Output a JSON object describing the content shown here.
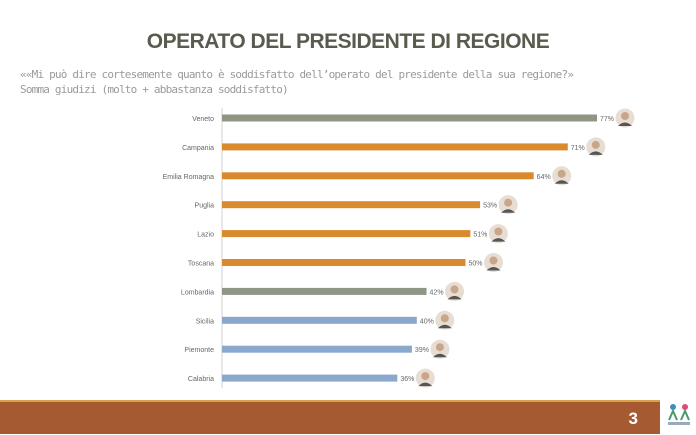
{
  "header": {
    "title": "OPERATO DEL PRESIDENTE DI REGIONE",
    "question": "««Mi può dire cortesemente quanto è soddisfatto dell’operato del presidente della sua regione?»",
    "subtitle": "Somma giudizi (molto + abbastanza soddisfatto)"
  },
  "chart_data": {
    "type": "bar",
    "orientation": "horizontal",
    "xlim": [
      0,
      100
    ],
    "grid": false,
    "categories": [
      "Veneto",
      "Campania",
      "Emilia Romagna",
      "Puglia",
      "Lazio",
      "Toscana",
      "Lombardia",
      "Sicilia",
      "Piemonte",
      "Calabria"
    ],
    "values": [
      77,
      71,
      64,
      53,
      51,
      50,
      42,
      40,
      39,
      36
    ],
    "labels": [
      "77%",
      "71%",
      "64%",
      "53%",
      "51%",
      "50%",
      "42%",
      "40%",
      "39%",
      "36%"
    ],
    "colors": [
      "#8f9683",
      "#d98a2c",
      "#d98a2c",
      "#d98a2c",
      "#d98a2c",
      "#d98a2c",
      "#8f9683",
      "#8aa8cc",
      "#8aa8cc",
      "#8aa8cc"
    ]
  },
  "footer": {
    "page": "3",
    "color": "#a65a32"
  }
}
